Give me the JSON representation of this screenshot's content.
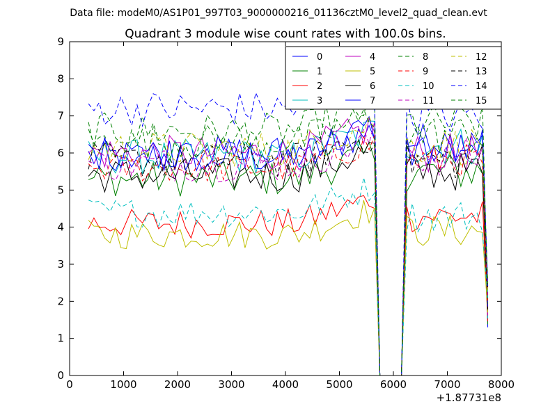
{
  "figure": {
    "suptitle": "Data file: modeM0/AS1P01_997T03_9000000216_01136cztM0_level2_quad_clean.evt"
  },
  "chart_data": {
    "type": "line",
    "title": "Quadrant 3 module wise count rates with 100.0s bins.",
    "xlabel": "",
    "ylabel": "",
    "x_offset_label": "+1.87731e8",
    "xlim": [
      0,
      8000
    ],
    "ylim": [
      0,
      9
    ],
    "xticks": [
      0,
      1000,
      2000,
      3000,
      4000,
      5000,
      6000,
      7000,
      8000
    ],
    "yticks": [
      0,
      1,
      2,
      3,
      4,
      5,
      6,
      7,
      8,
      9
    ],
    "grid": false,
    "legend_position": "top-right",
    "legend_columns": 4,
    "series": [
      {
        "name": "0",
        "color": "#0000ff",
        "dash": "solid",
        "base": 5.9,
        "amp": 0.3,
        "late": 6.3
      },
      {
        "name": "1",
        "color": "#008000",
        "dash": "solid",
        "base": 5.3,
        "amp": 0.3,
        "late": 5.5
      },
      {
        "name": "2",
        "color": "#ff0000",
        "dash": "solid",
        "base": 4.1,
        "amp": 0.25,
        "late": 4.3
      },
      {
        "name": "3",
        "color": "#00bfbf",
        "dash": "solid",
        "base": 5.9,
        "amp": 0.3,
        "late": 6.2
      },
      {
        "name": "4",
        "color": "#bf00bf",
        "dash": "solid",
        "base": 6.0,
        "amp": 0.3,
        "late": 6.0
      },
      {
        "name": "5",
        "color": "#bfbf00",
        "dash": "solid",
        "base": 3.8,
        "amp": 0.25,
        "late": 3.9
      },
      {
        "name": "6",
        "color": "#000000",
        "dash": "solid",
        "base": 5.4,
        "amp": 0.3,
        "late": 5.5
      },
      {
        "name": "7",
        "color": "#0000ff",
        "dash": "solid",
        "base": 6.0,
        "amp": 0.3,
        "late": 6.1
      },
      {
        "name": "8",
        "color": "#008000",
        "dash": "dashed",
        "base": 6.6,
        "amp": 0.3,
        "late": 6.8
      },
      {
        "name": "9",
        "color": "#ff0000",
        "dash": "dashed",
        "base": 5.6,
        "amp": 0.25,
        "late": 5.8
      },
      {
        "name": "10",
        "color": "#00bfbf",
        "dash": "dashed",
        "base": 4.4,
        "amp": 0.25,
        "late": 4.3
      },
      {
        "name": "11",
        "color": "#bf00bf",
        "dash": "dashed",
        "base": 5.7,
        "amp": 0.3,
        "late": 5.9
      },
      {
        "name": "12",
        "color": "#bfbf00",
        "dash": "dashed",
        "base": 6.1,
        "amp": 0.3,
        "late": 6.2
      },
      {
        "name": "13",
        "color": "#000000",
        "dash": "dashed",
        "base": 5.8,
        "amp": 0.3,
        "late": 5.8
      },
      {
        "name": "14",
        "color": "#0000ff",
        "dash": "dashed",
        "base": 7.2,
        "amp": 0.3,
        "late": 7.0
      },
      {
        "name": "15",
        "color": "#008000",
        "dash": "dashed",
        "base": 6.3,
        "amp": 0.3,
        "late": 6.5
      }
    ],
    "time_profile": {
      "bin_width_s": 100,
      "segment1": {
        "x_start": 350,
        "x_end": 5650
      },
      "rise_after_x": 4200,
      "rise_max": 0.7,
      "drop_points": [
        [
          5750,
          0
        ],
        [
          6150,
          0
        ]
      ],
      "segment2": {
        "x_start": 6250,
        "x_end": 7650
      },
      "end_point_x": 7750,
      "end_values_range": [
        1.3,
        2.5
      ]
    }
  }
}
